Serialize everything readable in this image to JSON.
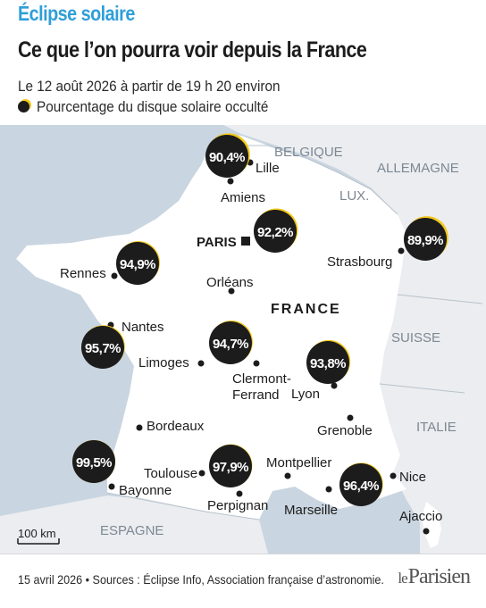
{
  "header": {
    "kicker": "Éclipse solaire",
    "title": "Ce que l’on pourra voir depuis la France",
    "subtitle": "Le 12 août 2026 à partir de 19 h 20 environ",
    "legend": "Pourcentage du disque solaire occulté"
  },
  "colors": {
    "sea": "#c9d5e0",
    "neighbors": "#ebedf0",
    "france": "#ffffff",
    "disk": "#1c1c1c",
    "sun": "#f2c81a",
    "accent": "#2f9fd8"
  },
  "map": {
    "country_label": "FRANCE",
    "neighbors": [
      {
        "name": "BELGIQUE",
        "key": "belgique"
      },
      {
        "name": "ALLEMAGNE",
        "key": "allemagne"
      },
      {
        "name": "LUX.",
        "key": "lux"
      },
      {
        "name": "SUISSE",
        "key": "suisse"
      },
      {
        "name": "ITALIE",
        "key": "italie"
      },
      {
        "name": "ESPAGNE",
        "key": "espagne"
      }
    ],
    "cities": [
      {
        "name": "Lille",
        "key": "lille"
      },
      {
        "name": "Amiens",
        "key": "amiens"
      },
      {
        "name": "PARIS",
        "key": "paris",
        "capital": true
      },
      {
        "name": "Strasbourg",
        "key": "strasbourg"
      },
      {
        "name": "Rennes",
        "key": "rennes"
      },
      {
        "name": "Orléans",
        "key": "orleans"
      },
      {
        "name": "Nantes",
        "key": "nantes"
      },
      {
        "name": "Limoges",
        "key": "limoges"
      },
      {
        "name": "Clermont-",
        "key": "clermont1"
      },
      {
        "name": "Ferrand",
        "key": "clermont2"
      },
      {
        "name": "Lyon",
        "key": "lyon"
      },
      {
        "name": "Grenoble",
        "key": "grenoble"
      },
      {
        "name": "Bordeaux",
        "key": "bordeaux"
      },
      {
        "name": "Bayonne",
        "key": "bayonne"
      },
      {
        "name": "Toulouse",
        "key": "toulouse"
      },
      {
        "name": "Montpellier",
        "key": "montpellier"
      },
      {
        "name": "Perpignan",
        "key": "perpignan"
      },
      {
        "name": "Marseille",
        "key": "marseille"
      },
      {
        "name": "Nice",
        "key": "nice"
      },
      {
        "name": "Ajaccio",
        "key": "ajaccio"
      }
    ],
    "eclipse": [
      {
        "key": "lille",
        "value": "90,4%",
        "fraction": 0.904
      },
      {
        "key": "paris",
        "value": "92,2%",
        "fraction": 0.922
      },
      {
        "key": "strasbourg",
        "value": "89,9%",
        "fraction": 0.899
      },
      {
        "key": "rennes",
        "value": "94,9%",
        "fraction": 0.949
      },
      {
        "key": "nantes",
        "value": "95,7%",
        "fraction": 0.957
      },
      {
        "key": "limoges",
        "value": "94,7%",
        "fraction": 0.947
      },
      {
        "key": "lyon",
        "value": "93,8%",
        "fraction": 0.938
      },
      {
        "key": "bayonne",
        "value": "99,5%",
        "fraction": 0.995
      },
      {
        "key": "toulouse",
        "value": "97,9%",
        "fraction": 0.979
      },
      {
        "key": "marseille",
        "value": "96,4%",
        "fraction": 0.964
      }
    ],
    "scale_label": "100 km"
  },
  "footer": {
    "source": "15 avril 2026 • Sources : Éclipse Info, Association française d’astronomie.",
    "logo_le": "le",
    "logo_name": "Parisien"
  }
}
